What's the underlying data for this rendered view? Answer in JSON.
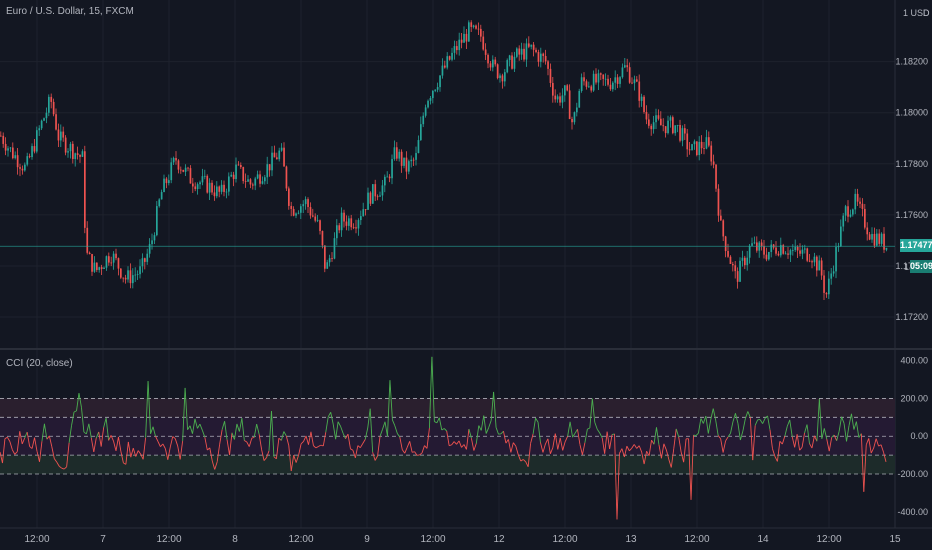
{
  "header": {
    "symbol_title": "Euro / U.S. Dollar, 15, FXCM",
    "currency": "1 USD",
    "currency_suffix": "D"
  },
  "indicator": {
    "title": "CCI (20, close)"
  },
  "price_tags": {
    "last_price": "1.17477",
    "countdown": "05:09",
    "countdown_prefix": "1."
  },
  "colors": {
    "background": "#131722",
    "grid": "#1e222d",
    "bull": "#26a69a",
    "bear": "#ef5350",
    "cci_up": "#4caf50",
    "cci_down": "#ef5350",
    "band_top": "#2a1f2e",
    "band_mid": "#241a33",
    "band_bottom": "#1d2b2a",
    "last_price": "#26a69a"
  },
  "chart_data": [
    {
      "type": "candlestick",
      "title": "Euro / U.S. Dollar, 15, FXCM",
      "ylim": [
        1.1711,
        1.1841
      ],
      "y_ticks": [
        "1.18200",
        "1.18000",
        "1.17800",
        "1.17600",
        "1.17400",
        "1.17200"
      ],
      "y_tick_values": [
        1.182,
        1.18,
        1.178,
        1.176,
        1.174,
        1.172
      ],
      "x_ticks": [
        "12:00",
        "7",
        "12:00",
        "8",
        "12:00",
        "9",
        "12:00",
        "12",
        "12:00",
        "13",
        "12:00",
        "14",
        "12:00",
        "15"
      ],
      "last_price": 1.17477,
      "path_x": [
        0,
        10,
        25,
        40,
        50,
        58,
        70,
        82,
        85,
        95,
        110,
        125,
        140,
        150,
        160,
        175,
        190,
        205,
        220,
        235,
        250,
        265,
        280,
        290,
        305,
        318,
        325,
        340,
        355,
        370,
        385,
        395,
        405,
        415,
        425,
        440,
        455,
        468,
        480,
        492,
        500,
        515,
        530,
        545,
        555,
        565,
        572,
        580,
        595,
        610,
        625,
        638,
        645,
        660,
        675,
        690,
        705,
        712,
        720,
        735,
        750,
        765,
        780,
        795,
        810,
        820,
        825,
        835,
        845,
        855,
        870,
        880,
        886
      ],
      "path_y": [
        1.1791,
        1.1785,
        1.1778,
        1.1795,
        1.1805,
        1.179,
        1.1786,
        1.1782,
        1.1745,
        1.1738,
        1.1745,
        1.1735,
        1.1738,
        1.1748,
        1.1768,
        1.1782,
        1.1774,
        1.1772,
        1.1768,
        1.1778,
        1.1772,
        1.1778,
        1.1785,
        1.1762,
        1.1765,
        1.1755,
        1.1738,
        1.1758,
        1.1758,
        1.1768,
        1.1772,
        1.1785,
        1.1778,
        1.1782,
        1.1805,
        1.1815,
        1.1825,
        1.1832,
        1.183,
        1.1818,
        1.1815,
        1.1822,
        1.1825,
        1.182,
        1.1805,
        1.1808,
        1.1795,
        1.1812,
        1.1812,
        1.1812,
        1.1818,
        1.1808,
        1.1798,
        1.1795,
        1.1795,
        1.1785,
        1.1788,
        1.1782,
        1.1755,
        1.1735,
        1.1748,
        1.1745,
        1.1748,
        1.1745,
        1.1745,
        1.1738,
        1.1728,
        1.1745,
        1.1762,
        1.1765,
        1.1752,
        1.175,
        1.17477
      ]
    },
    {
      "type": "line",
      "title": "CCI (20, close)",
      "ylim": [
        -470,
        430
      ],
      "y_ticks": [
        "400.00",
        "200.00",
        "0.00",
        "-200.00",
        "-400.00"
      ],
      "y_tick_values": [
        400,
        200,
        0,
        -200,
        -400
      ],
      "bands": [
        200,
        100,
        0,
        -100,
        -200
      ],
      "num_points": 360,
      "spikes": [
        [
          8,
          120
        ],
        [
          32,
          60
        ],
        [
          45,
          -40
        ],
        [
          60,
          260
        ],
        [
          75,
          240
        ],
        [
          110,
          230
        ],
        [
          118,
          -120
        ],
        [
          150,
          180
        ],
        [
          158,
          210
        ],
        [
          175,
          400
        ],
        [
          190,
          150
        ],
        [
          200,
          110
        ],
        [
          240,
          170
        ],
        [
          250,
          -420
        ],
        [
          280,
          -380
        ],
        [
          305,
          -200
        ],
        [
          332,
          190
        ],
        [
          350,
          -220
        ]
      ]
    }
  ]
}
